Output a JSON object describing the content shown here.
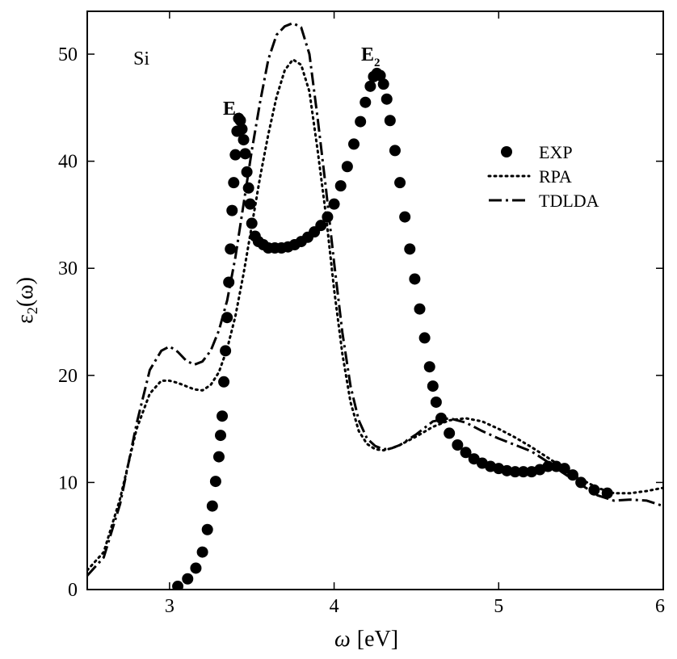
{
  "chart_data": {
    "type": "line",
    "xlabel_symbol": "ω",
    "xlabel_unit": "[eV]",
    "ylabel_main": "ε",
    "ylabel_sub": "2",
    "ylabel_tail": "(ω)",
    "xlim": [
      2.5,
      6
    ],
    "ylim": [
      0,
      54
    ],
    "xticks": [
      3,
      4,
      5,
      6
    ],
    "yticks": [
      0,
      10,
      20,
      30,
      40,
      50
    ],
    "grid": false,
    "legend_position": "top-right",
    "annotations": {
      "material": "Si",
      "peak1_main": "E",
      "peak1_sub": "1",
      "peak2_main": "E",
      "peak2_sub": "2"
    },
    "series": [
      {
        "name": "EXP",
        "style": "markers",
        "color": "#000000",
        "x": [
          3.05,
          3.11,
          3.16,
          3.2,
          3.23,
          3.26,
          3.28,
          3.3,
          3.31,
          3.32,
          3.33,
          3.34,
          3.35,
          3.36,
          3.37,
          3.38,
          3.39,
          3.4,
          3.41,
          3.42,
          3.43,
          3.44,
          3.45,
          3.46,
          3.47,
          3.48,
          3.49,
          3.5,
          3.52,
          3.54,
          3.57,
          3.6,
          3.64,
          3.68,
          3.72,
          3.76,
          3.8,
          3.84,
          3.88,
          3.92,
          3.96,
          4.0,
          4.04,
          4.08,
          4.12,
          4.16,
          4.19,
          4.22,
          4.24,
          4.26,
          4.28,
          4.3,
          4.32,
          4.34,
          4.37,
          4.4,
          4.43,
          4.46,
          4.49,
          4.52,
          4.55,
          4.58,
          4.6,
          4.62,
          4.65,
          4.7,
          4.75,
          4.8,
          4.85,
          4.9,
          4.95,
          5.0,
          5.05,
          5.1,
          5.15,
          5.2,
          5.25,
          5.3,
          5.35,
          5.4,
          5.45,
          5.5,
          5.58,
          5.66
        ],
        "y": [
          0.3,
          1.0,
          2.0,
          3.5,
          5.6,
          7.8,
          10.1,
          12.4,
          14.4,
          16.2,
          19.4,
          22.3,
          25.4,
          28.7,
          31.8,
          35.4,
          38.0,
          40.6,
          42.8,
          44.0,
          43.8,
          43.0,
          42.0,
          40.7,
          39.0,
          37.5,
          36.0,
          34.2,
          33.0,
          32.5,
          32.2,
          31.9,
          31.9,
          31.9,
          32.0,
          32.2,
          32.5,
          32.9,
          33.4,
          34.0,
          34.8,
          36.0,
          37.7,
          39.5,
          41.6,
          43.7,
          45.5,
          47.0,
          47.9,
          48.2,
          48.0,
          47.2,
          45.8,
          43.8,
          41.0,
          38.0,
          34.8,
          31.8,
          29.0,
          26.2,
          23.5,
          20.8,
          19.0,
          17.5,
          16.0,
          14.6,
          13.5,
          12.8,
          12.2,
          11.8,
          11.5,
          11.3,
          11.1,
          11.0,
          11.0,
          11.0,
          11.2,
          11.5,
          11.5,
          11.3,
          10.7,
          10.0,
          9.3,
          9.0
        ]
      },
      {
        "name": "RPA",
        "style": "dotted",
        "color": "#000000",
        "x": [
          2.5,
          2.6,
          2.7,
          2.8,
          2.88,
          2.95,
          3.0,
          3.05,
          3.1,
          3.15,
          3.2,
          3.25,
          3.3,
          3.35,
          3.4,
          3.45,
          3.5,
          3.55,
          3.6,
          3.65,
          3.7,
          3.75,
          3.8,
          3.85,
          3.9,
          3.95,
          4.0,
          4.05,
          4.1,
          4.15,
          4.2,
          4.25,
          4.3,
          4.35,
          4.4,
          4.5,
          4.6,
          4.7,
          4.8,
          4.9,
          5.0,
          5.1,
          5.2,
          5.3,
          5.4,
          5.5,
          5.6,
          5.7,
          5.8,
          5.9,
          6.0
        ],
        "y": [
          1.8,
          3.5,
          8.5,
          15.0,
          18.3,
          19.5,
          19.5,
          19.3,
          19.0,
          18.7,
          18.6,
          19.1,
          20.3,
          22.5,
          25.5,
          29.5,
          34.0,
          38.5,
          42.5,
          46.0,
          48.5,
          49.5,
          49.0,
          46.5,
          41.0,
          35.0,
          28.0,
          22.0,
          17.5,
          14.8,
          13.6,
          13.1,
          13.0,
          13.2,
          13.5,
          14.3,
          15.2,
          15.8,
          16.0,
          15.7,
          15.0,
          14.2,
          13.3,
          12.3,
          11.3,
          10.3,
          9.5,
          9.0,
          9.0,
          9.2,
          9.5
        ]
      },
      {
        "name": "TDLDA",
        "style": "dash-dot",
        "color": "#000000",
        "x": [
          2.5,
          2.6,
          2.7,
          2.8,
          2.88,
          2.95,
          3.0,
          3.05,
          3.1,
          3.15,
          3.2,
          3.25,
          3.3,
          3.35,
          3.4,
          3.45,
          3.5,
          3.55,
          3.6,
          3.65,
          3.7,
          3.75,
          3.8,
          3.85,
          3.9,
          3.95,
          4.0,
          4.05,
          4.1,
          4.15,
          4.2,
          4.25,
          4.3,
          4.35,
          4.4,
          4.5,
          4.6,
          4.7,
          4.8,
          4.9,
          5.0,
          5.1,
          5.2,
          5.3,
          5.4,
          5.5,
          5.6,
          5.7,
          5.8,
          5.9,
          6.0
        ],
        "y": [
          1.3,
          3.0,
          8.0,
          15.5,
          20.5,
          22.3,
          22.7,
          22.2,
          21.4,
          21.0,
          21.3,
          22.3,
          24.2,
          27.0,
          31.0,
          36.0,
          41.0,
          45.5,
          49.5,
          51.8,
          52.6,
          52.9,
          52.5,
          50.0,
          44.0,
          37.5,
          30.5,
          24.0,
          19.0,
          15.8,
          14.1,
          13.4,
          13.1,
          13.2,
          13.5,
          14.5,
          15.7,
          16.0,
          15.6,
          14.8,
          14.1,
          13.5,
          12.9,
          11.9,
          10.8,
          9.8,
          8.8,
          8.3,
          8.4,
          8.3,
          7.8
        ]
      }
    ]
  }
}
